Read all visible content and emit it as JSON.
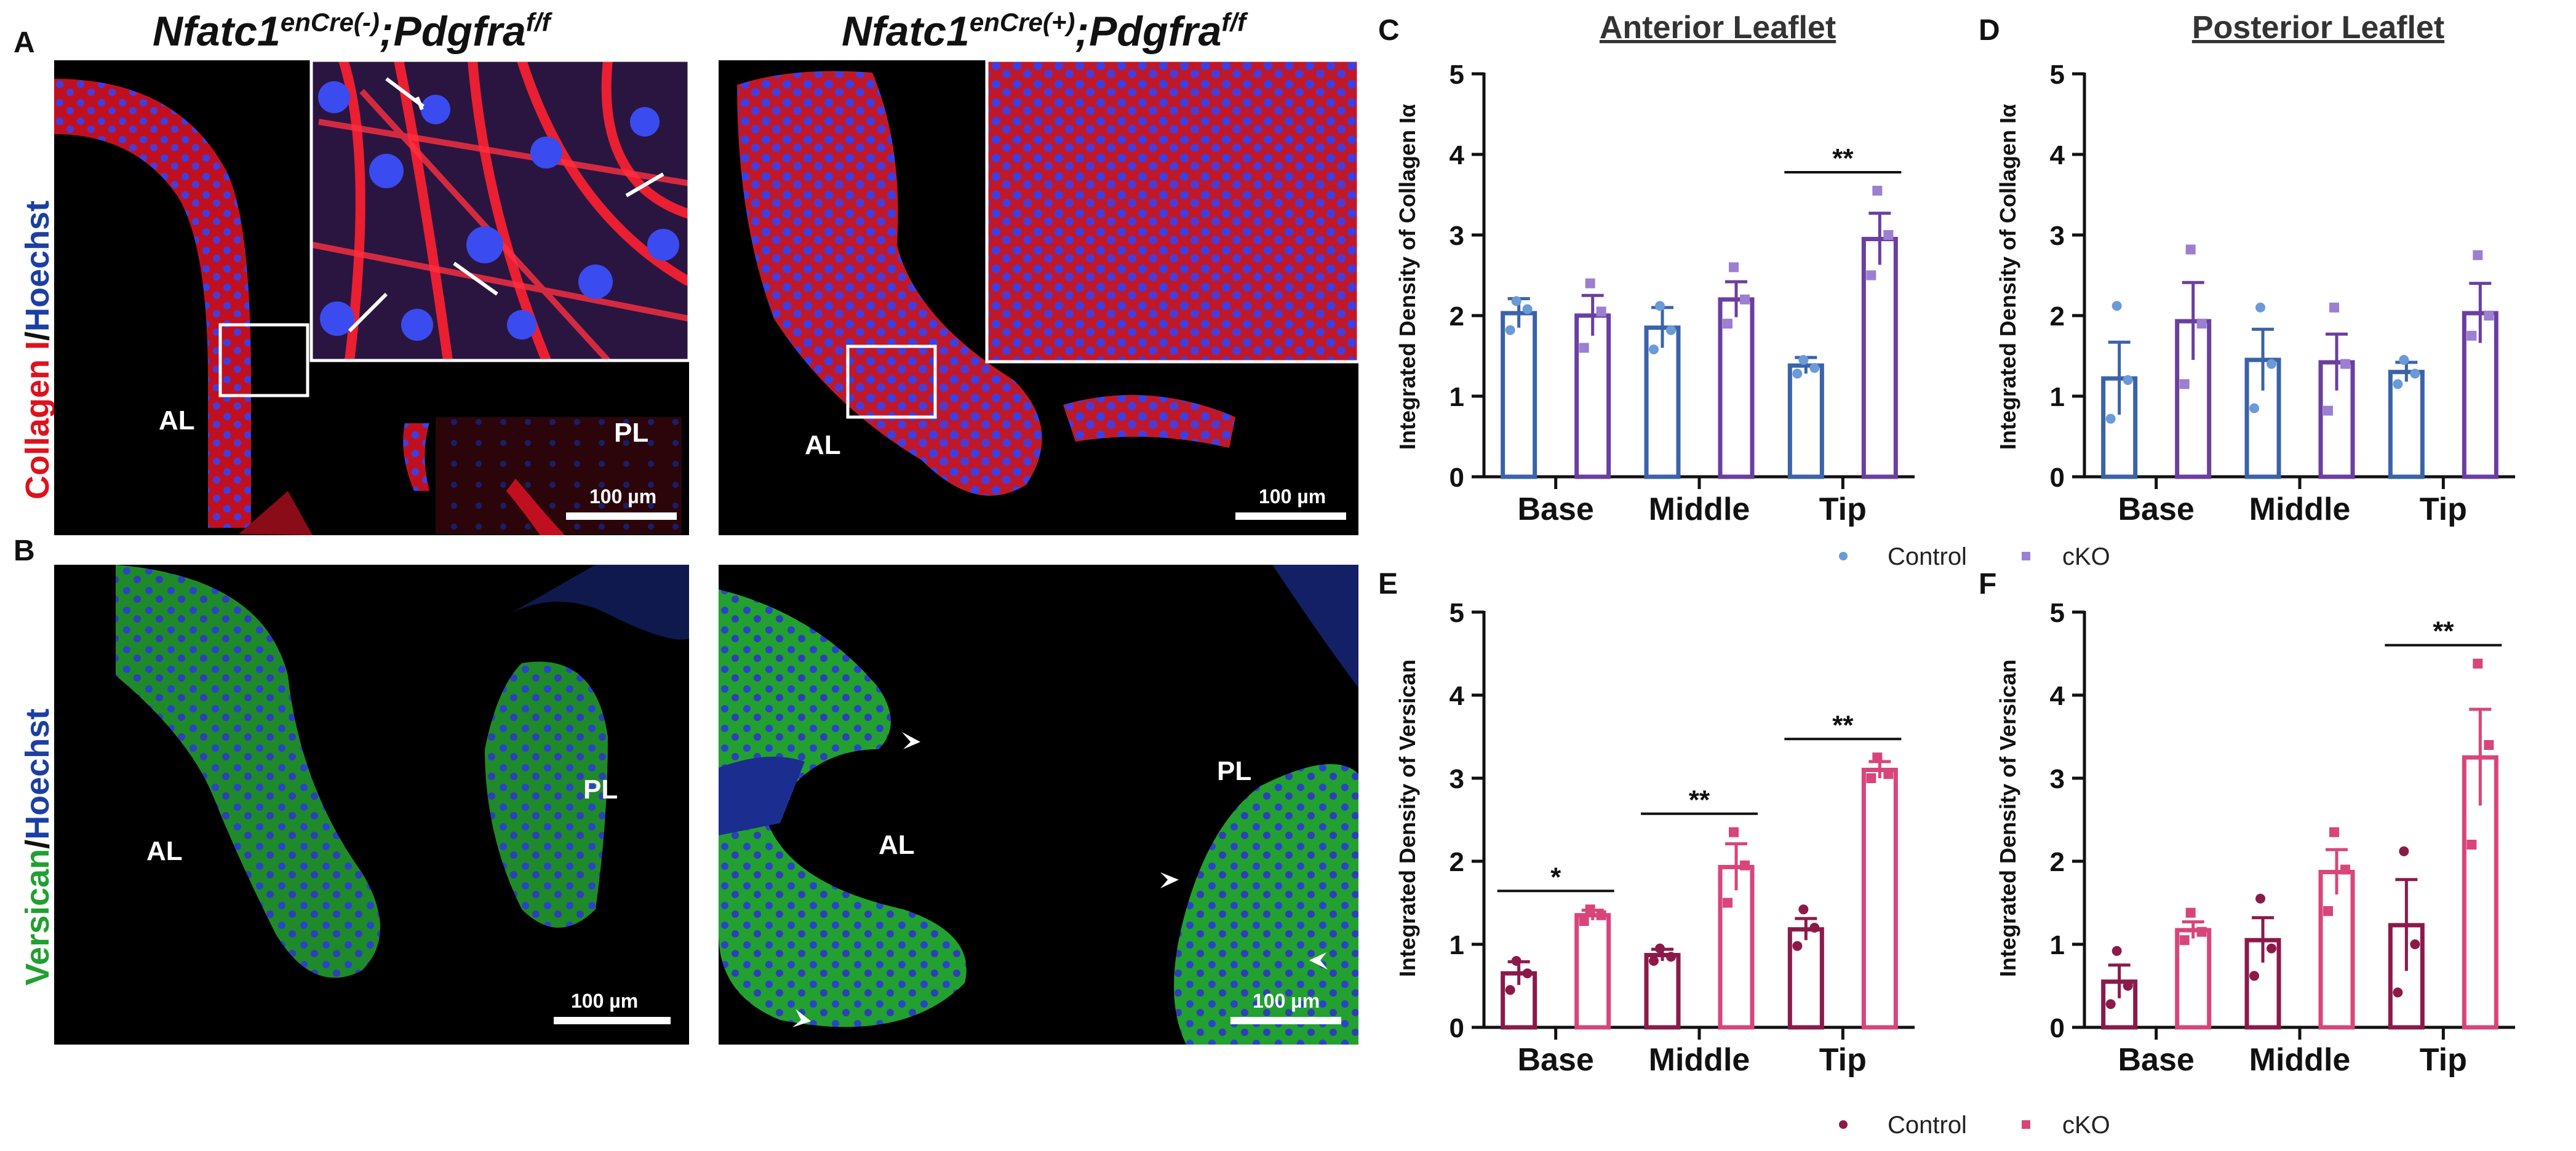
{
  "panel_letters": [
    "A",
    "B",
    "C",
    "D",
    "E",
    "F"
  ],
  "genotypes": {
    "control": {
      "main": "Nfatc1",
      "sup1": "enCre(-)",
      "mid": ";Pdgfra",
      "sup2": "f/f"
    },
    "cko": {
      "main": "Nfatc1",
      "sup1": "enCre(+)",
      "mid": ";Pdgfra",
      "sup2": "f/f"
    }
  },
  "row_labels": {
    "a": {
      "part1": "Collagen I",
      "sep": "/",
      "part2": "Hoechst",
      "color1": "#e0101c",
      "color2": "#1b3fa3"
    },
    "b": {
      "part1": "Versican",
      "sep": "/",
      "part2": "Hoechst",
      "color1": "#20a030",
      "color2": "#1b3fa3"
    }
  },
  "image_labels": {
    "al": "AL",
    "pl": "PL",
    "scale": "100 µm"
  },
  "colors": {
    "control_blue": "#3a63a8",
    "cko_purple": "#6a3fa0",
    "cko_purple_light": "#9b7fd0",
    "control_maroon": "#8b1a4a",
    "cko_pink": "#d8457a",
    "collagen_red": "#e0101c",
    "nuclei_blue": "#2a3ce0",
    "versican_green": "#2bd43a"
  },
  "chart_data": [
    {
      "id": "C",
      "type": "bar",
      "title": "Anterior Leaflet",
      "ylabel": "Integrated Density of Collagen Iα",
      "categories": [
        "Base",
        "Middle",
        "Tip"
      ],
      "ylim": [
        0,
        5
      ],
      "yticks": [
        "0",
        "1",
        "2",
        "3",
        "4",
        "5"
      ],
      "series": [
        {
          "name": "Control",
          "values": [
            2.03,
            1.85,
            1.38
          ],
          "sem": [
            0.18,
            0.25,
            0.1
          ],
          "points": [
            [
              2.18,
              2.08,
              1.82
            ],
            [
              2.12,
              1.82,
              1.58
            ],
            [
              1.45,
              1.35,
              1.28
            ]
          ]
        },
        {
          "name": "cKO",
          "values": [
            2.0,
            2.2,
            2.95
          ],
          "sem": [
            0.25,
            0.22,
            0.32
          ],
          "points": [
            [
              2.4,
              2.05,
              1.6
            ],
            [
              2.6,
              2.2,
              1.9
            ],
            [
              3.55,
              3.0,
              2.5
            ]
          ]
        }
      ],
      "significance": [
        {
          "category": "Tip",
          "label": "**"
        }
      ]
    },
    {
      "id": "D",
      "type": "bar",
      "title": "Posterior Leaflet",
      "ylabel": "Integrated Density of Collagen Iα",
      "categories": [
        "Base",
        "Middle",
        "Tip"
      ],
      "ylim": [
        0,
        5
      ],
      "yticks": [
        "0",
        "1",
        "2",
        "3",
        "4",
        "5"
      ],
      "series": [
        {
          "name": "Control",
          "values": [
            1.22,
            1.45,
            1.3
          ],
          "sem": [
            0.45,
            0.38,
            0.12
          ],
          "points": [
            [
              2.12,
              1.2,
              0.72
            ],
            [
              2.1,
              1.4,
              0.85
            ],
            [
              1.45,
              1.28,
              1.15
            ]
          ]
        },
        {
          "name": "cKO",
          "values": [
            1.93,
            1.42,
            2.03
          ],
          "sem": [
            0.48,
            0.35,
            0.37
          ],
          "points": [
            [
              2.82,
              1.9,
              1.15
            ],
            [
              2.1,
              1.4,
              0.82
            ],
            [
              2.75,
              2.0,
              1.75
            ]
          ]
        }
      ],
      "significance": []
    },
    {
      "id": "E",
      "type": "bar",
      "title": "",
      "ylabel": "Integrated Density of Versican",
      "categories": [
        "Base",
        "Middle",
        "Tip"
      ],
      "ylim": [
        0,
        5
      ],
      "yticks": [
        "0",
        "1",
        "2",
        "3",
        "4",
        "5"
      ],
      "series": [
        {
          "name": "Control",
          "values": [
            0.65,
            0.87,
            1.18
          ],
          "sem": [
            0.14,
            0.07,
            0.13
          ],
          "points": [
            [
              0.8,
              0.65,
              0.45
            ],
            [
              0.95,
              0.85,
              0.8
            ],
            [
              1.42,
              1.2,
              0.98
            ]
          ]
        },
        {
          "name": "cKO",
          "values": [
            1.35,
            1.93,
            3.1
          ],
          "sem": [
            0.06,
            0.28,
            0.1
          ],
          "points": [
            [
              1.42,
              1.35,
              1.28
            ],
            [
              2.35,
              1.95,
              1.5
            ],
            [
              3.25,
              3.05,
              3.0
            ]
          ]
        }
      ],
      "significance": [
        {
          "category": "Base",
          "label": "*"
        },
        {
          "category": "Middle",
          "label": "**"
        },
        {
          "category": "Tip",
          "label": "**"
        }
      ]
    },
    {
      "id": "F",
      "type": "bar",
      "title": "",
      "ylabel": "Integrated Density of Versican",
      "categories": [
        "Base",
        "Middle",
        "Tip"
      ],
      "ylim": [
        0,
        5
      ],
      "yticks": [
        "0",
        "1",
        "2",
        "3",
        "4",
        "5"
      ],
      "series": [
        {
          "name": "Control",
          "values": [
            0.55,
            1.05,
            1.23
          ],
          "sem": [
            0.2,
            0.27,
            0.55
          ],
          "points": [
            [
              0.92,
              0.5,
              0.28
            ],
            [
              1.55,
              0.95,
              0.62
            ],
            [
              2.12,
              1.0,
              0.42
            ]
          ]
        },
        {
          "name": "cKO",
          "values": [
            1.17,
            1.87,
            3.25
          ],
          "sem": [
            0.1,
            0.27,
            0.58
          ],
          "points": [
            [
              1.38,
              1.15,
              1.05
            ],
            [
              2.35,
              1.9,
              1.4
            ],
            [
              4.38,
              3.4,
              2.2
            ]
          ]
        }
      ],
      "significance": [
        {
          "category": "Tip",
          "label": "**"
        }
      ]
    }
  ],
  "legends": {
    "collagen": [
      {
        "label": "Control"
      },
      {
        "label": "cKO"
      }
    ],
    "versican": [
      {
        "label": "Control"
      },
      {
        "label": "cKO"
      }
    ]
  }
}
